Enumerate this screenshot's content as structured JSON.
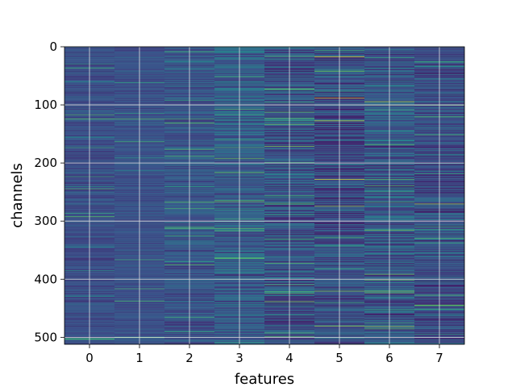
{
  "chart_data": {
    "type": "heatmap",
    "title": "",
    "xlabel": "features",
    "ylabel": "channels",
    "x_categories": [
      "0",
      "1",
      "2",
      "3",
      "4",
      "5",
      "6",
      "7"
    ],
    "y_ticks": [
      0,
      100,
      200,
      300,
      400,
      500
    ],
    "ylim": [
      512,
      0
    ],
    "n_channels": 512,
    "n_features": 8,
    "grid": true,
    "colormap": "viridis",
    "colors": {
      "cmap_low": "#440154",
      "cmap_mid_low": "#3b528b",
      "cmap_mid": "#21918c",
      "cmap_mid_high": "#5ec962",
      "cmap_high": "#fde725",
      "grid": "#dddddd"
    },
    "prominent_stripes": [
      {
        "feature": 0,
        "channel": 124,
        "value": 0.7
      },
      {
        "feature": 1,
        "channel": 124,
        "value": 0.7
      },
      {
        "feature": 2,
        "channel": 124,
        "value": 0.65
      },
      {
        "feature": 2,
        "channel": 240,
        "value": 0.55
      },
      {
        "feature": 3,
        "channel": 160,
        "value": 0.6
      },
      {
        "feature": 3,
        "channel": 280,
        "value": 0.55
      },
      {
        "feature": 4,
        "channel": 112,
        "value": 0.75
      },
      {
        "feature": 4,
        "channel": 330,
        "value": 0.6
      },
      {
        "feature": 4,
        "channel": 372,
        "value": 0.7
      },
      {
        "feature": 5,
        "channel": 17,
        "value": 0.95
      },
      {
        "feature": 5,
        "channel": 88,
        "value": 0.95
      },
      {
        "feature": 5,
        "channel": 127,
        "value": 0.9
      },
      {
        "feature": 5,
        "channel": 228,
        "value": 0.95
      },
      {
        "feature": 5,
        "channel": 420,
        "value": 0.8
      },
      {
        "feature": 5,
        "channel": 480,
        "value": 0.85
      },
      {
        "feature": 6,
        "channel": 100,
        "value": 0.7
      },
      {
        "feature": 6,
        "channel": 228,
        "value": 0.7
      },
      {
        "feature": 6,
        "channel": 420,
        "value": 0.8
      },
      {
        "feature": 7,
        "channel": 100,
        "value": 0.75
      },
      {
        "feature": 7,
        "channel": 120,
        "value": 0.7
      },
      {
        "feature": 7,
        "channel": 270,
        "value": 0.85
      }
    ]
  }
}
